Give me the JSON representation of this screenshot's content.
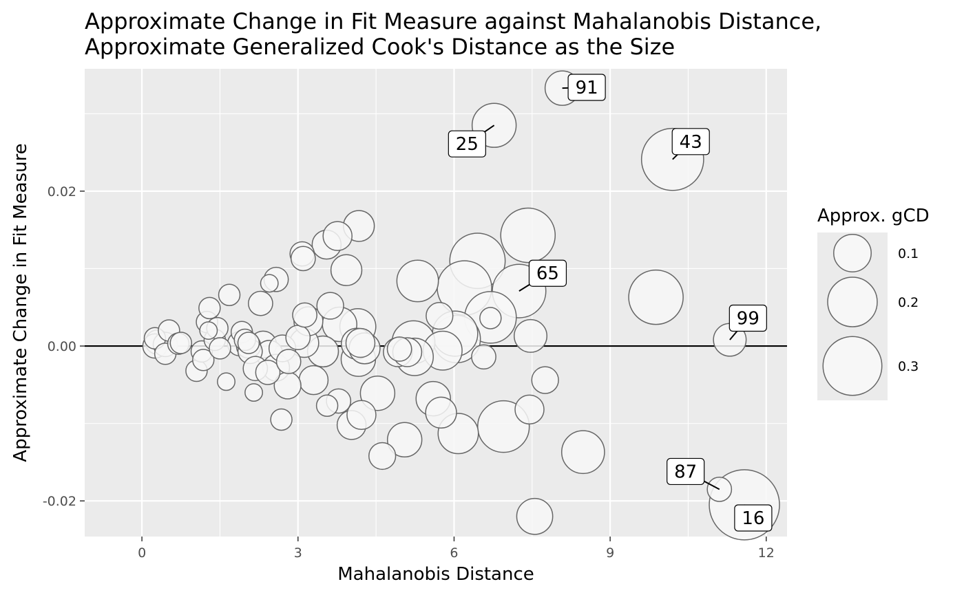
{
  "chart_data": {
    "type": "scatter",
    "title": "Approximate Change in Fit Measure against Mahalanobis Distance,",
    "subtitle": "Approximate Generalized Cook's Distance as the Size",
    "xlabel": "Mahalanobis Distance",
    "ylabel": "Approximate Change in Fit Measure",
    "xlim": [
      -1.1,
      12.4
    ],
    "ylim": [
      -0.0246,
      0.0358
    ],
    "x_ticks": [
      0,
      3,
      6,
      9,
      12
    ],
    "x_tick_labels": [
      "0",
      "3",
      "6",
      "9",
      "12"
    ],
    "y_ticks": [
      -0.02,
      0.0,
      0.02
    ],
    "y_tick_labels": [
      "-0.02",
      "0.00",
      "0.02"
    ],
    "reference_line_y": 0,
    "background": "#ebebeb",
    "grid": true,
    "point_fill": "#f7f7f7",
    "point_stroke": "#666666",
    "legend": {
      "title": "Approx. gCD",
      "placement": "right",
      "entries": [
        {
          "value": 0.1,
          "label": "0.1"
        },
        {
          "value": 0.2,
          "label": "0.2"
        },
        {
          "value": 0.3,
          "label": "0.3"
        }
      ]
    },
    "points": [
      {
        "x": 0.25,
        "y": 0.001,
        "size": 0.02
      },
      {
        "x": 0.3,
        "y": 0.0005,
        "size": 0.03
      },
      {
        "x": 0.25,
        "y": 0.0,
        "size": 0.03
      },
      {
        "x": 0.45,
        "y": 0.0002,
        "size": 0.03
      },
      {
        "x": 0.45,
        "y": -0.001,
        "size": 0.02
      },
      {
        "x": 0.52,
        "y": 0.002,
        "size": 0.02
      },
      {
        "x": 0.7,
        "y": 0.0003,
        "size": 0.02
      },
      {
        "x": 0.75,
        "y": 0.0004,
        "size": 0.02
      },
      {
        "x": 1.05,
        "y": -0.0032,
        "size": 0.02
      },
      {
        "x": 1.15,
        "y": -0.0007,
        "size": 0.02
      },
      {
        "x": 1.18,
        "y": -0.0018,
        "size": 0.02
      },
      {
        "x": 1.25,
        "y": 0.0031,
        "size": 0.02
      },
      {
        "x": 1.28,
        "y": 0.002,
        "size": 0.01
      },
      {
        "x": 1.3,
        "y": 0.0049,
        "size": 0.02
      },
      {
        "x": 1.4,
        "y": 0.0008,
        "size": 0.02
      },
      {
        "x": 1.45,
        "y": 0.0023,
        "size": 0.02
      },
      {
        "x": 1.5,
        "y": -0.0003,
        "size": 0.02
      },
      {
        "x": 1.62,
        "y": -0.0046,
        "size": 0.01
      },
      {
        "x": 1.68,
        "y": 0.0066,
        "size": 0.02
      },
      {
        "x": 1.88,
        "y": 0.0003,
        "size": 0.03
      },
      {
        "x": 1.92,
        "y": 0.0018,
        "size": 0.02
      },
      {
        "x": 1.98,
        "y": 0.0008,
        "size": 0.02
      },
      {
        "x": 2.05,
        "y": 0.0004,
        "size": 0.02
      },
      {
        "x": 2.05,
        "y": 0.0,
        "size": 0.03
      },
      {
        "x": 2.08,
        "y": -0.0007,
        "size": 0.03
      },
      {
        "x": 2.15,
        "y": -0.006,
        "size": 0.01
      },
      {
        "x": 2.18,
        "y": -0.0029,
        "size": 0.03
      },
      {
        "x": 2.28,
        "y": 0.0055,
        "size": 0.03
      },
      {
        "x": 2.33,
        "y": 0.0002,
        "size": 0.04
      },
      {
        "x": 2.42,
        "y": -0.0034,
        "size": 0.03
      },
      {
        "x": 2.45,
        "y": -0.001,
        "size": 0.04
      },
      {
        "x": 2.45,
        "y": 0.0081,
        "size": 0.01
      },
      {
        "x": 2.58,
        "y": -0.0028,
        "size": 0.04
      },
      {
        "x": 2.58,
        "y": 0.0086,
        "size": 0.03
      },
      {
        "x": 2.68,
        "y": -0.0095,
        "size": 0.02
      },
      {
        "x": 2.7,
        "y": -0.0003,
        "size": 0.04
      },
      {
        "x": 2.8,
        "y": -0.0051,
        "size": 0.04
      },
      {
        "x": 2.82,
        "y": -0.002,
        "size": 0.03
      },
      {
        "x": 3.0,
        "y": 0.0011,
        "size": 0.03
      },
      {
        "x": 3.08,
        "y": 0.0119,
        "size": 0.03
      },
      {
        "x": 3.1,
        "y": 0.0113,
        "size": 0.03
      },
      {
        "x": 3.12,
        "y": 0.0004,
        "size": 0.05
      },
      {
        "x": 3.13,
        "y": 0.004,
        "size": 0.03
      },
      {
        "x": 3.2,
        "y": 0.0032,
        "size": 0.05
      },
      {
        "x": 3.3,
        "y": -0.0044,
        "size": 0.05
      },
      {
        "x": 3.48,
        "y": -0.0007,
        "size": 0.06
      },
      {
        "x": 3.55,
        "y": 0.0131,
        "size": 0.05
      },
      {
        "x": 3.56,
        "y": -0.0077,
        "size": 0.02
      },
      {
        "x": 3.62,
        "y": 0.0052,
        "size": 0.04
      },
      {
        "x": 3.76,
        "y": 0.0142,
        "size": 0.05
      },
      {
        "x": 3.78,
        "y": -0.0071,
        "size": 0.03
      },
      {
        "x": 3.8,
        "y": 0.0028,
        "size": 0.08
      },
      {
        "x": 3.93,
        "y": 0.0098,
        "size": 0.06
      },
      {
        "x": 4.03,
        "y": -0.0102,
        "size": 0.05
      },
      {
        "x": 4.13,
        "y": 0.0003,
        "size": 0.06
      },
      {
        "x": 4.15,
        "y": 0.0025,
        "size": 0.09
      },
      {
        "x": 4.16,
        "y": -0.0017,
        "size": 0.08
      },
      {
        "x": 4.17,
        "y": 0.0155,
        "size": 0.06
      },
      {
        "x": 4.2,
        "y": 0.0004,
        "size": 0.05
      },
      {
        "x": 4.22,
        "y": -0.0089,
        "size": 0.05
      },
      {
        "x": 4.28,
        "y": -0.0003,
        "size": 0.06
      },
      {
        "x": 4.53,
        "y": -0.0061,
        "size": 0.08
      },
      {
        "x": 4.62,
        "y": -0.0142,
        "size": 0.04
      },
      {
        "x": 4.92,
        "y": -0.0008,
        "size": 0.05
      },
      {
        "x": 4.95,
        "y": -0.0004,
        "size": 0.03
      },
      {
        "x": 5.05,
        "y": -0.0121,
        "size": 0.08
      },
      {
        "x": 5.1,
        "y": -0.0008,
        "size": 0.05
      },
      {
        "x": 5.22,
        "y": 0.0005,
        "size": 0.14
      },
      {
        "x": 5.24,
        "y": -0.0014,
        "size": 0.1
      },
      {
        "x": 5.3,
        "y": 0.0084,
        "size": 0.13
      },
      {
        "x": 5.6,
        "y": -0.0068,
        "size": 0.08
      },
      {
        "x": 5.72,
        "y": 0.0039,
        "size": 0.04
      },
      {
        "x": 5.75,
        "y": -0.0086,
        "size": 0.06
      },
      {
        "x": 5.78,
        "y": -0.0006,
        "size": 0.11
      },
      {
        "x": 6.02,
        "y": 0.0016,
        "size": 0.16
      },
      {
        "x": 6.05,
        "y": 0.0009,
        "size": 0.18
      },
      {
        "x": 6.08,
        "y": -0.0113,
        "size": 0.12
      },
      {
        "x": 6.2,
        "y": 0.0075,
        "size": 0.25
      },
      {
        "x": 6.45,
        "y": 0.011,
        "size": 0.26
      },
      {
        "x": 6.57,
        "y": -0.0014,
        "size": 0.03
      },
      {
        "x": 6.7,
        "y": 0.0036,
        "size": 0.02
      },
      {
        "x": 6.7,
        "y": 0.0037,
        "size": 0.22
      },
      {
        "x": 6.77,
        "y": 0.0285,
        "size": 0.15
      },
      {
        "x": 6.95,
        "y": -0.0104,
        "size": 0.22
      },
      {
        "x": 7.25,
        "y": 0.0071,
        "size": 0.24
      },
      {
        "x": 7.42,
        "y": 0.0143,
        "size": 0.25
      },
      {
        "x": 7.45,
        "y": -0.0082,
        "size": 0.05
      },
      {
        "x": 7.47,
        "y": 0.0013,
        "size": 0.07
      },
      {
        "x": 7.55,
        "y": -0.022,
        "size": 0.09
      },
      {
        "x": 7.75,
        "y": -0.0044,
        "size": 0.04
      },
      {
        "x": 8.08,
        "y": 0.0333,
        "size": 0.08
      },
      {
        "x": 8.48,
        "y": -0.0137,
        "size": 0.14
      },
      {
        "x": 9.88,
        "y": 0.0063,
        "size": 0.25
      },
      {
        "x": 10.2,
        "y": 0.0241,
        "size": 0.34
      },
      {
        "x": 11.3,
        "y": 0.0008,
        "size": 0.07
      },
      {
        "x": 11.1,
        "y": -0.0185,
        "size": 0.03
      },
      {
        "x": 11.58,
        "y": -0.0205,
        "size": 0.45
      }
    ],
    "labels": [
      {
        "text": "91",
        "x": 8.08,
        "y": 0.0333,
        "dx": 8.55,
        "dy": 0.0334
      },
      {
        "text": "25",
        "x": 6.77,
        "y": 0.0285,
        "dx": 6.25,
        "dy": 0.0261
      },
      {
        "text": "43",
        "x": 10.2,
        "y": 0.0241,
        "dx": 10.55,
        "dy": 0.0264
      },
      {
        "text": "65",
        "x": 7.25,
        "y": 0.0071,
        "dx": 7.8,
        "dy": 0.0094
      },
      {
        "text": "99",
        "x": 11.3,
        "y": 0.0008,
        "dx": 11.65,
        "dy": 0.0036
      },
      {
        "text": "87",
        "x": 11.1,
        "y": -0.0185,
        "dx": 10.45,
        "dy": -0.0162
      },
      {
        "text": "16",
        "x": 11.58,
        "y": -0.0205,
        "dx": 11.75,
        "dy": -0.0222
      }
    ]
  }
}
